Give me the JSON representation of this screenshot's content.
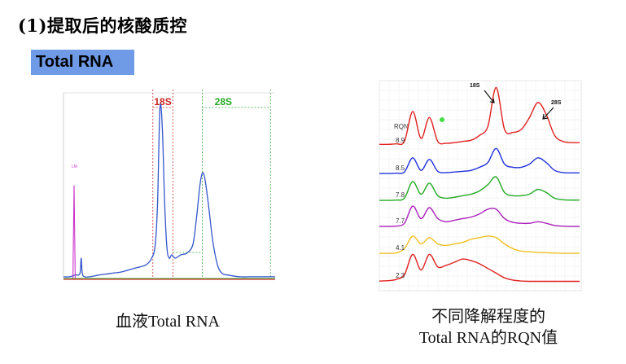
{
  "heading": "(1)提取后的核酸质控",
  "tag": "Total RNA",
  "captions": {
    "left": "血液Total RNA",
    "right_line1": "不同降解程度的",
    "right_line2": "Total RNA的RQN值"
  },
  "chart_data": [
    {
      "type": "line",
      "title": "",
      "xlabel": "",
      "ylabel": "",
      "grid": false,
      "annotations": [
        {
          "text": "18S",
          "color": "#cc2222"
        },
        {
          "text": "28S",
          "color": "#22aa22"
        },
        {
          "text": "LM",
          "color": "#cc33cc"
        }
      ],
      "series": [
        {
          "color": "#3355cc",
          "x": [
            0,
            5,
            10,
            14,
            15,
            16,
            18,
            22,
            30,
            40,
            50,
            60,
            70,
            75,
            78,
            80,
            82,
            84,
            86,
            88,
            90,
            92,
            95,
            100,
            105,
            110,
            113,
            116,
            118,
            120,
            123,
            127,
            131,
            135,
            140,
            150,
            160,
            170,
            180
          ],
          "y": [
            0.01,
            0.01,
            0.02,
            0.03,
            0.12,
            0.03,
            0.01,
            0.01,
            0.02,
            0.03,
            0.04,
            0.06,
            0.08,
            0.12,
            0.2,
            0.45,
            1.0,
            0.9,
            0.45,
            0.18,
            0.12,
            0.14,
            0.12,
            0.14,
            0.15,
            0.2,
            0.35,
            0.55,
            0.62,
            0.6,
            0.45,
            0.22,
            0.08,
            0.03,
            0.02,
            0.01,
            0.01,
            0.01,
            0.01
          ]
        },
        {
          "color": "#cc33cc",
          "x": [
            0,
            8,
            9,
            10,
            12,
            180
          ],
          "y": [
            0.0,
            0.0,
            0.55,
            0.0,
            0.0,
            0.0
          ]
        },
        {
          "color": "#22aa22",
          "x": [
            0,
            180
          ],
          "y": [
            0.0,
            0.0
          ]
        }
      ]
    },
    {
      "type": "line",
      "title": "",
      "xlabel": "",
      "ylabel": "",
      "grid": true,
      "legend_title": "RQN",
      "annotations": [
        {
          "text": "18S"
        },
        {
          "text": "28S"
        }
      ],
      "series": [
        {
          "name": "8.9",
          "color": "#e02020",
          "y": [
            0.05,
            0.05,
            0.06,
            0.1,
            0.6,
            0.15,
            0.5,
            0.1,
            0.07,
            0.08,
            0.1,
            0.12,
            0.2,
            0.35,
            1.0,
            0.3,
            0.25,
            0.3,
            0.5,
            0.75,
            0.55,
            0.2,
            0.1,
            0.08,
            0.08
          ]
        },
        {
          "name": "8.5",
          "color": "#2233dd",
          "y": [
            0.05,
            0.05,
            0.06,
            0.1,
            0.55,
            0.15,
            0.5,
            0.12,
            0.08,
            0.1,
            0.12,
            0.15,
            0.25,
            0.4,
            0.85,
            0.35,
            0.25,
            0.25,
            0.35,
            0.55,
            0.4,
            0.15,
            0.08,
            0.07,
            0.07
          ]
        },
        {
          "name": "7.8",
          "color": "#22aa22",
          "y": [
            0.05,
            0.05,
            0.06,
            0.12,
            0.65,
            0.25,
            0.6,
            0.2,
            0.12,
            0.15,
            0.2,
            0.25,
            0.35,
            0.55,
            0.8,
            0.3,
            0.2,
            0.2,
            0.25,
            0.4,
            0.3,
            0.12,
            0.07,
            0.06,
            0.06
          ]
        },
        {
          "name": "7.7",
          "color": "#aa22bb",
          "y": [
            0.05,
            0.05,
            0.06,
            0.15,
            0.7,
            0.3,
            0.65,
            0.3,
            0.2,
            0.25,
            0.3,
            0.35,
            0.45,
            0.6,
            0.6,
            0.3,
            0.18,
            0.15,
            0.15,
            0.2,
            0.15,
            0.08,
            0.06,
            0.05,
            0.05
          ]
        },
        {
          "name": "4.1",
          "color": "#f0c020",
          "y": [
            0.05,
            0.05,
            0.06,
            0.2,
            0.6,
            0.35,
            0.55,
            0.35,
            0.3,
            0.35,
            0.4,
            0.5,
            0.55,
            0.6,
            0.55,
            0.35,
            0.2,
            0.12,
            0.1,
            0.08,
            0.07,
            0.06,
            0.05,
            0.05,
            0.05
          ]
        },
        {
          "name": "2.3",
          "color": "#e02020",
          "y": [
            0.05,
            0.06,
            0.1,
            0.25,
            0.9,
            0.4,
            0.9,
            0.5,
            0.55,
            0.65,
            0.75,
            0.7,
            0.6,
            0.45,
            0.3,
            0.15,
            0.08,
            0.05,
            0.04,
            0.04,
            0.04,
            0.04,
            0.04,
            0.04,
            0.04
          ]
        }
      ]
    }
  ]
}
